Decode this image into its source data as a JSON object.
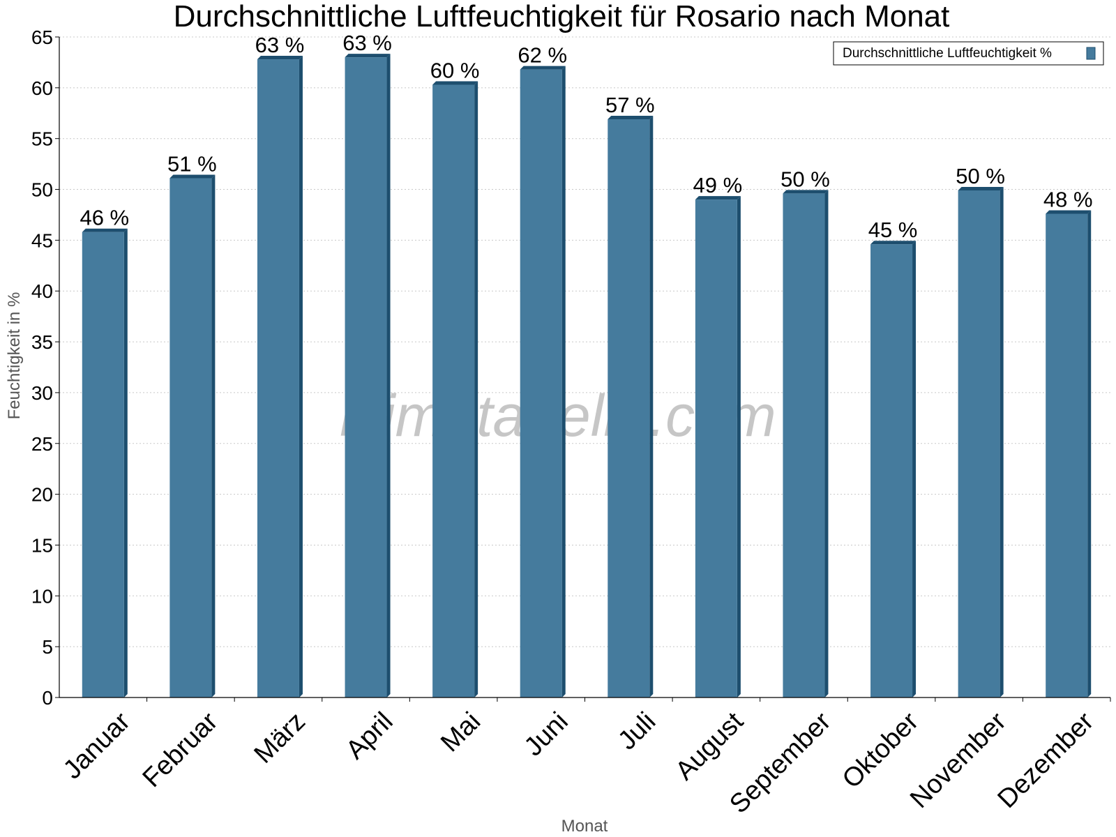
{
  "chart_data": {
    "type": "bar",
    "title": "Durchschnittliche Luftfeuchtigkeit für Rosario nach Monat",
    "xlabel": "Monat",
    "ylabel": "Feuchtigkeit in %",
    "ylim": [
      0,
      65
    ],
    "yticks": [
      0,
      5,
      10,
      15,
      20,
      25,
      30,
      35,
      40,
      45,
      50,
      55,
      60,
      65
    ],
    "grid": true,
    "legend_position": "top-right",
    "categories": [
      "Januar",
      "Februar",
      "März",
      "April",
      "Mai",
      "Juni",
      "Juli",
      "August",
      "September",
      "Oktober",
      "November",
      "Dezember"
    ],
    "series": [
      {
        "name": "Durchschnittliche Luftfeuchtigkeit %",
        "values": [
          45.8,
          51.1,
          62.8,
          63.0,
          60.3,
          61.8,
          56.9,
          49.0,
          49.6,
          44.6,
          49.9,
          47.6
        ],
        "labels": [
          "46 %",
          "51 %",
          "63 %",
          "63 %",
          "60 %",
          "62 %",
          "57 %",
          "49 %",
          "50 %",
          "45 %",
          "50 %",
          "48 %"
        ],
        "color": "#457b9d",
        "shadow_color": "#1d4e6e"
      }
    ],
    "watermark": "klimatabelle.com"
  }
}
